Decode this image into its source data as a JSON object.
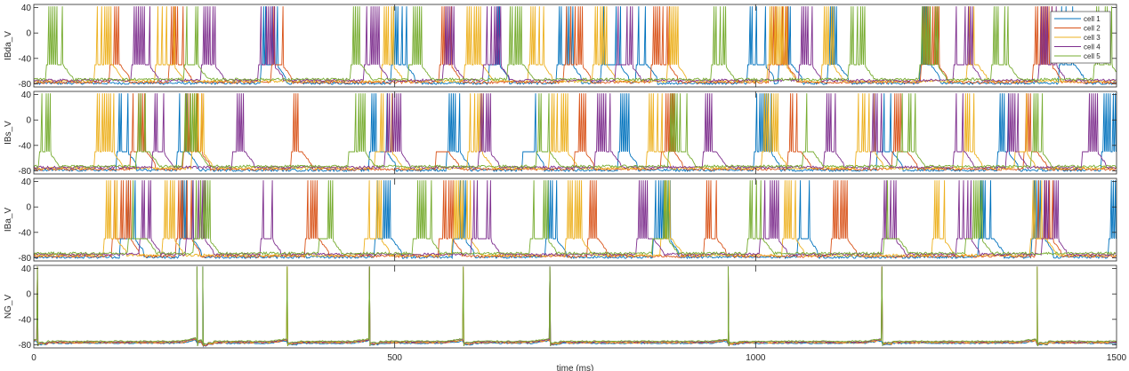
{
  "chart_data": [
    {
      "type": "line",
      "ylabel": "IBda_V",
      "ylim": [
        -85,
        45
      ],
      "yticks": [
        40,
        0,
        -40,
        -80
      ],
      "xlim": [
        0,
        1500
      ],
      "bursts": [
        {
          "cell": 0,
          "times": [
            318,
            498,
            633,
            728,
            790,
            838,
            992,
            1036,
            1103,
            1231,
            1424
          ]
        },
        {
          "cell": 1,
          "times": [
            108,
            190,
            333,
            565,
            738,
            858,
            1022,
            1232,
            1388
          ]
        },
        {
          "cell": 2,
          "times": [
            88,
            172,
            485,
            600,
            688,
            778,
            880,
            1020,
            1095,
            1296
          ]
        },
        {
          "cell": 3,
          "times": [
            138,
            235,
            315,
            460,
            570,
            625,
            810,
            1063,
            1278,
            1395
          ]
        },
        {
          "cell": 4,
          "times": [
            20,
            212,
            442,
            522,
            660,
            942,
            1132,
            1230,
            1330,
            1472
          ]
        }
      ]
    },
    {
      "type": "line",
      "ylabel": "IBs_V",
      "ylim": [
        -85,
        45
      ],
      "yticks": [
        40,
        0,
        -40,
        -80
      ],
      "xlim": [
        0,
        1500
      ],
      "bursts": [
        {
          "cell": 0,
          "times": [
            118,
            202,
            468,
            575,
            680,
            812,
            1002,
            1172,
            1338,
            1482
          ]
        },
        {
          "cell": 1,
          "times": [
            138,
            210,
            360,
            560,
            752,
            872,
            1048,
            1192,
            1375
          ]
        },
        {
          "cell": 2,
          "times": [
            88,
            222,
            475,
            605,
            718,
            852,
            1012,
            1142,
            1290,
            1362
          ]
        },
        {
          "cell": 3,
          "times": [
            168,
            278,
            490,
            620,
            780,
            930,
            1098,
            1162,
            1278,
            1350,
            1455
          ]
        },
        {
          "cell": 4,
          "times": [
            10,
            145,
            210,
            440,
            700,
            882,
            1068,
            1200,
            1385
          ]
        }
      ]
    },
    {
      "type": "line",
      "ylabel": "IBa_V",
      "ylim": [
        -85,
        45
      ],
      "yticks": [
        40,
        0,
        -40,
        -80
      ],
      "xlim": [
        0,
        1500
      ],
      "bursts": [
        {
          "cell": 0,
          "times": [
            122,
            205,
            475,
            585,
            712,
            862,
            1062,
            1312,
            1385,
            1492
          ]
        },
        {
          "cell": 1,
          "times": [
            112,
            200,
            380,
            565,
            770,
            932,
            1108,
            1392
          ]
        },
        {
          "cell": 2,
          "times": [
            100,
            182,
            462,
            582,
            740,
            872,
            1040,
            1248,
            1384
          ]
        },
        {
          "cell": 3,
          "times": [
            150,
            215,
            318,
            610,
            838,
            1010,
            1178,
            1282,
            1400
          ]
        },
        {
          "cell": 4,
          "times": [
            135,
            225,
            398,
            528,
            690,
            860,
            992,
            1180,
            1295
          ]
        }
      ]
    },
    {
      "type": "line",
      "ylabel": "NG_V",
      "ylim": [
        -85,
        45
      ],
      "yticks": [
        40,
        0,
        -40,
        -80
      ],
      "xlim": [
        0,
        1500
      ],
      "xlabel": "time (ms)",
      "xticks": [
        0,
        500,
        1000,
        1500
      ],
      "spike_times": [
        5,
        226,
        234,
        351,
        465,
        595,
        715,
        962,
        1175,
        1390
      ]
    }
  ],
  "legend": {
    "position": "top-right",
    "entries": [
      "cell 1",
      "cell 2",
      "cell 3",
      "cell 4",
      "cell 5"
    ]
  },
  "colors": [
    "#0072BD",
    "#D95319",
    "#EDB120",
    "#7E2F8E",
    "#77AC30"
  ]
}
